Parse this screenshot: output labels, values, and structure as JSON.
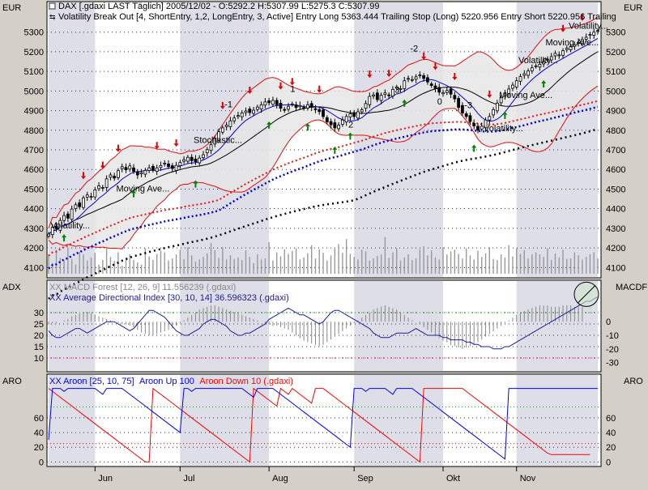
{
  "window": {
    "header_line1": "DAX [.gdaxi LAST Täglich] 2005/12/02 - O:5292.2 H:5307.99 L:5275.3 C:5307.99",
    "header_line2": "Volatility Break Out [4, ShortEntry, 1,2, LongEntry, 3, Active] Entry Long 5363.444 Trailing Stop (Long) 5220.956 Entry Short 5220.956 Trailing"
  },
  "colors": {
    "frame": "#d4d0c8",
    "plot_bg": "#ffffff",
    "band_stripe": "#dedee8",
    "bollinger": "#e01010",
    "ma_blue": "#0000dd",
    "ma_red": "#ee1111",
    "ma_black": "#000000",
    "adx": "#1a1aa0",
    "aroon_up": "#0000ff",
    "aroon_down": "#ff0000",
    "signal_red": "#dd0000",
    "signal_green": "#008000",
    "grid": "#333333"
  },
  "icons": {
    "window_icon": "square-checkbox-icon",
    "indicator_icon": "double-arrow-icon"
  },
  "chart_data": [
    {
      "id": "price",
      "type": "candlestick",
      "unit_left": "EUR",
      "unit_right": "EUR",
      "ylim": [
        4060,
        5340
      ],
      "y_ticks": [
        4100,
        4200,
        4300,
        4400,
        4500,
        4600,
        4700,
        4800,
        4900,
        5000,
        5100,
        5200,
        5300
      ],
      "x_ticks": [
        "Jun",
        "Jul",
        "Aug",
        "Sep",
        "Okt",
        "Nov"
      ],
      "grid": true,
      "close": [
        4270,
        4305,
        4298,
        4340,
        4365,
        4352,
        4398,
        4420,
        4410,
        4455,
        4470,
        4462,
        4496,
        4516,
        4508,
        4552,
        4572,
        4556,
        4594,
        4614,
        4598,
        4618,
        4590,
        4572,
        4584,
        4595,
        4608,
        4596,
        4608,
        4620,
        4632,
        4615,
        4605,
        4621,
        4636,
        4650,
        4662,
        4645,
        4640,
        4658,
        4675,
        4701,
        4726,
        4760,
        4792,
        4812,
        4826,
        4848,
        4862,
        4875,
        4888,
        4898,
        4890,
        4902,
        4918,
        4930,
        4944,
        4940,
        4952,
        4930,
        4912,
        4905,
        4922,
        4934,
        4916,
        4926,
        4915,
        4930,
        4918,
        4905,
        4895,
        4870,
        4842,
        4828,
        4812,
        4826,
        4852,
        4870,
        4884,
        4870,
        4894,
        4904,
        4936,
        4972,
        4980,
        4956,
        4978,
        4990,
        4976,
        5008,
        5020,
        5012,
        5052,
        5064,
        5058,
        5072,
        5082,
        5064,
        5046,
        5028,
        5012,
        4994,
        4992,
        5002,
        4984,
        4960,
        4916,
        4888,
        4870,
        4845,
        4822,
        4800,
        4820,
        4852,
        4870,
        4905,
        4938,
        4965,
        4990,
        5010,
        5030,
        5052,
        5074,
        5088,
        5102,
        5118,
        5128,
        5136,
        5150,
        5162,
        5175,
        5192,
        5184,
        5205,
        5218,
        5228,
        5236,
        5248,
        5262,
        5274,
        5288,
        5300,
        5308
      ],
      "volume_scale": [
        0,
        1000
      ],
      "volume": [
        380,
        210,
        470,
        310,
        260,
        520,
        290,
        180,
        430,
        380,
        260,
        320,
        410,
        180,
        270,
        500,
        330,
        250,
        420,
        160,
        300,
        380,
        270,
        220,
        180,
        500,
        340,
        270,
        390,
        450,
        420,
        260,
        300,
        380,
        470,
        290,
        520,
        360,
        240,
        280,
        330,
        400,
        600,
        460,
        310,
        520,
        280,
        360,
        290,
        320,
        270,
        460,
        330,
        210,
        380,
        280,
        300,
        620,
        260,
        420,
        340,
        480,
        390,
        450,
        500,
        280,
        320,
        400,
        560,
        300,
        480,
        410,
        260,
        360,
        520,
        580,
        410,
        680,
        390,
        330,
        280,
        470,
        440,
        260,
        300,
        350,
        380,
        720,
        310,
        420,
        500,
        260,
        320,
        380,
        270,
        300,
        480,
        540,
        360,
        460,
        320,
        280,
        520,
        380,
        440,
        470,
        390,
        300,
        500,
        360,
        280,
        450,
        330,
        400,
        520,
        290,
        270,
        380,
        320,
        560,
        340,
        500,
        390,
        460,
        300,
        380,
        420,
        380,
        330,
        500,
        270,
        400,
        320,
        470,
        290,
        300,
        420,
        360,
        280,
        330,
        380,
        420,
        300
      ],
      "annotations": [
        "Volatility...",
        "Moving Ave...",
        "Stochastic...",
        "-1",
        "1",
        "2",
        "3",
        "-2",
        "0",
        "-3",
        "Volatility...",
        "Moving Ave...",
        "Volatility...",
        "Moving Ave...",
        "Volatility..."
      ]
    },
    {
      "id": "adx",
      "type": "line+histogram",
      "label_left": "ADX",
      "label_right": "MACDF",
      "series": [
        {
          "name": "XX MACD Forest [12, 26, 9] 11.556239 (.gdaxi)"
        },
        {
          "name": "XX Average Directional Index [30, 10, 14] 36.596323 (.gdaxi)"
        }
      ],
      "ylim": [
        5,
        35
      ],
      "y_ticks": [
        10,
        15,
        20,
        25,
        30
      ],
      "y_ticks_right": [
        0,
        -10,
        -20,
        -30
      ],
      "ylim_right": [
        -35,
        15
      ],
      "adx": [
        22,
        20,
        19,
        19,
        20,
        21,
        22,
        23,
        23,
        22,
        21,
        22,
        23,
        24,
        25,
        26,
        26,
        26,
        25,
        24,
        23,
        22,
        23,
        25,
        27,
        29,
        31,
        31,
        30,
        29,
        28,
        26,
        24,
        22,
        21,
        20,
        20,
        21,
        22,
        23,
        25,
        26,
        27,
        27,
        26,
        25,
        24,
        22,
        21,
        20,
        20,
        21,
        21,
        22,
        23,
        24,
        25,
        27,
        28,
        29,
        30,
        31,
        32,
        31,
        30,
        29,
        29,
        28,
        27,
        26,
        25,
        26,
        28,
        30,
        31,
        31,
        30,
        29,
        28,
        27,
        26,
        25,
        24,
        23,
        21,
        20,
        19,
        19,
        19,
        20,
        21,
        21,
        21,
        21,
        22,
        23,
        22,
        21,
        20,
        20,
        20,
        20,
        19,
        19,
        18,
        18,
        18,
        18,
        17,
        17,
        16,
        16,
        15,
        15,
        15,
        14,
        14,
        14,
        15,
        15,
        16,
        17,
        18,
        19,
        20,
        21,
        22,
        23,
        24,
        25,
        26,
        27,
        28,
        29,
        30,
        31,
        32,
        33,
        34,
        35,
        35,
        36,
        37
      ],
      "macd_hist": [
        -2,
        -1,
        -1,
        0,
        1,
        2,
        4,
        5,
        6,
        7,
        7,
        6,
        5,
        4,
        3,
        2,
        1,
        0,
        -1,
        -2,
        -2,
        -3,
        -4,
        -6,
        -8,
        -9,
        -10,
        -10,
        -9,
        -8,
        -7,
        -6,
        -5,
        -3,
        -1,
        1,
        3,
        5,
        7,
        9,
        10,
        11,
        12,
        12,
        11,
        10,
        9,
        8,
        7,
        6,
        5,
        4,
        3,
        2,
        1,
        0,
        -1,
        -2,
        -3,
        -3,
        -4,
        -5,
        -6,
        -8,
        -10,
        -12,
        -14,
        -15,
        -16,
        -17,
        -18,
        -17,
        -15,
        -13,
        -11,
        -9,
        -7,
        -5,
        -3,
        -1,
        1,
        3,
        5,
        7,
        9,
        10,
        11,
        12,
        11,
        10,
        9,
        7,
        5,
        3,
        1,
        0,
        -2,
        -4,
        -6,
        -8,
        -10,
        -12,
        -14,
        -15,
        -17,
        -18,
        -19,
        -20,
        -19,
        -18,
        -17,
        -15,
        -13,
        -11,
        -9,
        -7,
        -5,
        -3,
        -1,
        1,
        3,
        5,
        7,
        8,
        9,
        10,
        11,
        12,
        12,
        12,
        11,
        11,
        11,
        12,
        12,
        12,
        11,
        11,
        11
      ],
      "reference_lines": [
        30,
        10
      ]
    },
    {
      "id": "aroon",
      "type": "line",
      "label_left": "ARO",
      "label_right": "ARO",
      "series": [
        {
          "name": "XX Aroon [25, 10, 75]"
        },
        {
          "name": "Aroon Up 100"
        },
        {
          "name": "Aroon Down 10 (.gdaxi)"
        }
      ],
      "ylim": [
        -4,
        104
      ],
      "y_ticks": [
        0,
        20,
        40,
        60
      ],
      "reference_lines": [
        75,
        25
      ],
      "aroon_up": [
        30,
        100,
        100,
        100,
        96,
        100,
        100,
        100,
        100,
        100,
        100,
        100,
        100,
        96,
        92,
        100,
        100,
        100,
        100,
        100,
        96,
        92,
        88,
        84,
        80,
        76,
        72,
        68,
        64,
        60,
        56,
        52,
        48,
        44,
        40,
        100,
        100,
        96,
        100,
        100,
        100,
        100,
        100,
        100,
        100,
        100,
        100,
        100,
        100,
        100,
        100,
        96,
        92,
        88,
        100,
        100,
        100,
        100,
        100,
        96,
        92,
        88,
        84,
        80,
        76,
        72,
        68,
        64,
        60,
        56,
        52,
        48,
        44,
        40,
        36,
        32,
        28,
        24,
        20,
        100,
        100,
        100,
        96,
        100,
        100,
        100,
        100,
        100,
        96,
        92,
        100,
        100,
        100,
        100,
        100,
        96,
        92,
        88,
        84,
        80,
        76,
        72,
        68,
        64,
        60,
        56,
        52,
        48,
        44,
        40,
        36,
        32,
        28,
        24,
        20,
        16,
        12,
        8,
        4,
        100,
        100,
        100,
        100,
        100,
        100,
        100,
        100,
        100,
        100,
        100,
        100,
        100,
        100,
        100,
        100,
        100,
        100,
        100,
        100,
        100,
        100,
        100,
        100
      ],
      "aroon_down": [
        100,
        96,
        92,
        88,
        84,
        80,
        76,
        72,
        68,
        64,
        60,
        56,
        52,
        48,
        44,
        40,
        36,
        32,
        28,
        24,
        20,
        16,
        12,
        8,
        4,
        0,
        0,
        100,
        96,
        92,
        88,
        84,
        80,
        76,
        72,
        68,
        64,
        60,
        56,
        52,
        48,
        44,
        40,
        36,
        32,
        28,
        24,
        20,
        16,
        12,
        8,
        4,
        0,
        100,
        96,
        92,
        88,
        84,
        80,
        76,
        100,
        96,
        92,
        100,
        96,
        92,
        88,
        84,
        80,
        100,
        100,
        100,
        96,
        92,
        88,
        84,
        80,
        76,
        72,
        68,
        64,
        60,
        56,
        52,
        48,
        44,
        40,
        36,
        32,
        28,
        24,
        20,
        16,
        12,
        8,
        4,
        0,
        100,
        100,
        100,
        100,
        100,
        100,
        100,
        100,
        100,
        100,
        100,
        96,
        92,
        88,
        84,
        80,
        76,
        72,
        68,
        64,
        60,
        56,
        52,
        48,
        44,
        40,
        36,
        32,
        28,
        24,
        20,
        16,
        12,
        10,
        10,
        10,
        10,
        10,
        10,
        10,
        10,
        10,
        10,
        10
      ]
    }
  ]
}
